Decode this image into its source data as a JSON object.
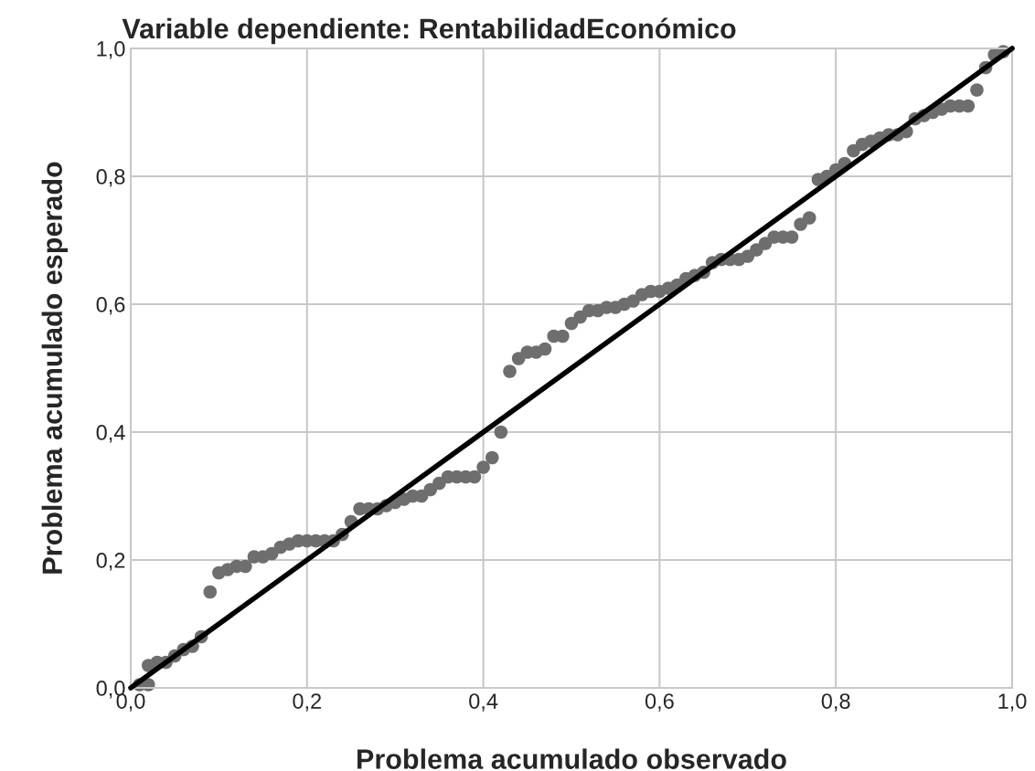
{
  "chart_data": {
    "type": "scatter",
    "title": "Variable dependiente: RentabilidadEconómico",
    "xlabel": "Problema acumulado observado",
    "ylabel": "Problema acumulado esperado",
    "series": [
      {
        "color": "#6e6e6e",
        "marker": "circle",
        "x": [
          0.01,
          0.02,
          0.02,
          0.03,
          0.04,
          0.05,
          0.06,
          0.07,
          0.08,
          0.09,
          0.1,
          0.11,
          0.12,
          0.13,
          0.14,
          0.15,
          0.16,
          0.17,
          0.18,
          0.19,
          0.2,
          0.21,
          0.22,
          0.23,
          0.24,
          0.25,
          0.26,
          0.27,
          0.28,
          0.29,
          0.3,
          0.31,
          0.32,
          0.33,
          0.34,
          0.35,
          0.36,
          0.37,
          0.38,
          0.39,
          0.4,
          0.41,
          0.42,
          0.43,
          0.44,
          0.45,
          0.46,
          0.47,
          0.48,
          0.49,
          0.5,
          0.51,
          0.52,
          0.53,
          0.54,
          0.55,
          0.56,
          0.57,
          0.58,
          0.59,
          0.6,
          0.61,
          0.62,
          0.63,
          0.64,
          0.65,
          0.66,
          0.67,
          0.68,
          0.69,
          0.7,
          0.71,
          0.72,
          0.73,
          0.74,
          0.75,
          0.76,
          0.77,
          0.78,
          0.79,
          0.8,
          0.81,
          0.82,
          0.83,
          0.84,
          0.85,
          0.86,
          0.87,
          0.88,
          0.89,
          0.9,
          0.91,
          0.92,
          0.93,
          0.94,
          0.95,
          0.96,
          0.97,
          0.98,
          0.99
        ],
        "values": [
          0.005,
          0.005,
          0.035,
          0.04,
          0.04,
          0.05,
          0.06,
          0.065,
          0.08,
          0.15,
          0.18,
          0.185,
          0.19,
          0.19,
          0.205,
          0.205,
          0.21,
          0.22,
          0.225,
          0.23,
          0.23,
          0.23,
          0.23,
          0.23,
          0.24,
          0.26,
          0.28,
          0.28,
          0.28,
          0.285,
          0.29,
          0.295,
          0.3,
          0.3,
          0.31,
          0.32,
          0.33,
          0.33,
          0.33,
          0.33,
          0.345,
          0.36,
          0.4,
          0.495,
          0.515,
          0.525,
          0.525,
          0.53,
          0.55,
          0.55,
          0.57,
          0.58,
          0.59,
          0.59,
          0.595,
          0.595,
          0.6,
          0.605,
          0.615,
          0.62,
          0.62,
          0.625,
          0.63,
          0.64,
          0.645,
          0.65,
          0.665,
          0.67,
          0.67,
          0.67,
          0.675,
          0.685,
          0.695,
          0.705,
          0.705,
          0.705,
          0.725,
          0.735,
          0.795,
          0.8,
          0.81,
          0.82,
          0.84,
          0.85,
          0.855,
          0.86,
          0.865,
          0.865,
          0.87,
          0.89,
          0.895,
          0.9,
          0.905,
          0.91,
          0.91,
          0.91,
          0.935,
          0.97,
          0.99,
          0.995
        ]
      },
      {
        "type": "line",
        "color": "#000000",
        "line_style": "solid",
        "x": [
          0,
          1
        ],
        "values": [
          0,
          1
        ]
      }
    ],
    "xlim": [
      0,
      1
    ],
    "ylim": [
      0,
      1
    ],
    "xticks": [
      {
        "value": 0,
        "label": "0,0"
      },
      {
        "value": 0.2,
        "label": "0,2"
      },
      {
        "value": 0.4,
        "label": "0,4"
      },
      {
        "value": 0.6,
        "label": "0,6"
      },
      {
        "value": 0.8,
        "label": "0,8"
      },
      {
        "value": 1,
        "label": "1,0"
      }
    ],
    "yticks": [
      {
        "value": 0,
        "label": "0,0"
      },
      {
        "value": 0.2,
        "label": "0,2"
      },
      {
        "value": 0.4,
        "label": "0,4"
      },
      {
        "value": 0.6,
        "label": "0,6"
      },
      {
        "value": 0.8,
        "label": "0,8"
      },
      {
        "value": 1,
        "label": "1,0"
      }
    ],
    "grid": true
  }
}
